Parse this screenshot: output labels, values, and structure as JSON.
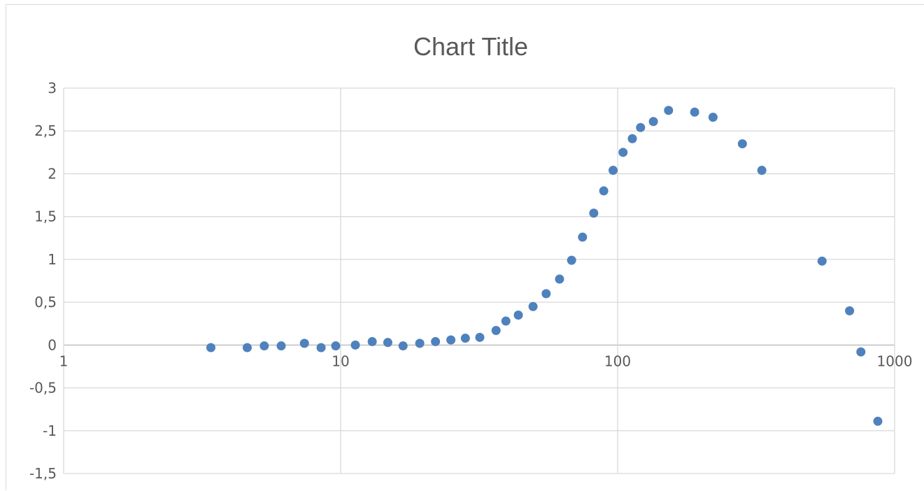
{
  "chart_data": {
    "type": "scatter",
    "title": "Chart Title",
    "xlabel": "",
    "ylabel": "",
    "x_scale": "log",
    "xlim": [
      1,
      1000
    ],
    "ylim": [
      -1.5,
      3
    ],
    "x_ticks": [
      1,
      10,
      100,
      1000
    ],
    "x_tick_labels": [
      "1",
      "10",
      "100",
      "1000"
    ],
    "y_ticks": [
      -1.5,
      -1,
      -0.5,
      0,
      0.5,
      1,
      1.5,
      2,
      2.5,
      3
    ],
    "y_tick_labels": [
      "-1,5",
      "-1",
      "-0,5",
      "0",
      "0,5",
      "1",
      "1,5",
      "2",
      "2,5",
      "3"
    ],
    "grid": true,
    "legend": "none",
    "marker_color": "#4f81bd",
    "series": [
      {
        "x": [
          3.4,
          4.6,
          5.3,
          6.1,
          7.4,
          8.5,
          9.6,
          11.3,
          13.0,
          14.8,
          16.8,
          19.3,
          22.0,
          25.0,
          28.2,
          31.8,
          36.4,
          39.5,
          43.8,
          49.5,
          55.2,
          61.7,
          68.2,
          74.7,
          82.0,
          89.1,
          96.3,
          104.6,
          113.0,
          121.0,
          134.6,
          152.7,
          189.7,
          221.0,
          282.1,
          331.6,
          547.1,
          687.6,
          755.5,
          869.6
        ],
        "y": [
          -0.03,
          -0.03,
          -0.01,
          -0.01,
          0.02,
          -0.03,
          -0.01,
          0.0,
          0.04,
          0.03,
          -0.01,
          0.02,
          0.04,
          0.06,
          0.08,
          0.09,
          0.17,
          0.28,
          0.35,
          0.45,
          0.6,
          0.77,
          0.99,
          1.26,
          1.54,
          1.8,
          2.04,
          2.25,
          2.41,
          2.54,
          2.61,
          2.74,
          2.72,
          2.66,
          2.35,
          2.04,
          0.98,
          0.4,
          -0.08,
          -0.89
        ]
      }
    ]
  }
}
